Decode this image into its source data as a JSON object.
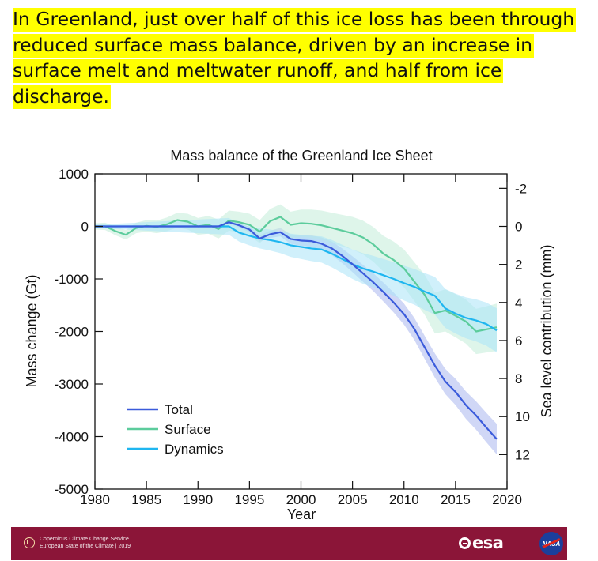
{
  "caption": {
    "text": "In Greenland, just over half of this ice loss has been through reduced surface mass balance, driven by an increase in surface melt and meltwater runoff, and half from ice discharge."
  },
  "colors": {
    "total": "#3b5bdb",
    "total_band": "#aab6ef",
    "surface": "#5ccc9c",
    "surface_band": "#c2ecd9",
    "dynamics": "#1fb6f0",
    "dynamics_band": "#a9e3f8",
    "footer_bg": "#8b1538"
  },
  "chart_data": {
    "type": "line",
    "title": "Mass balance of the Greenland Ice Sheet",
    "xlabel": "Year",
    "ylabel": "Mass change (Gt)",
    "y2label": "Sea level contribution (mm)",
    "xlim": [
      1980,
      2020
    ],
    "ylim": [
      -5000,
      1000
    ],
    "xticks": [
      1980,
      1985,
      1990,
      1995,
      2000,
      2005,
      2010,
      2015,
      2020
    ],
    "yticks": [
      1000,
      0,
      -1000,
      -2000,
      -3000,
      -4000,
      -5000
    ],
    "y2ticks": [
      -2,
      0,
      2,
      4,
      6,
      8,
      10,
      12
    ],
    "legend": [
      "Total",
      "Surface",
      "Dynamics"
    ],
    "legend_position": "bottom-left",
    "series": [
      {
        "name": "Total",
        "x": [
          1980,
          1981,
          1982,
          1983,
          1984,
          1985,
          1986,
          1987,
          1988,
          1989,
          1990,
          1991,
          1992,
          1993,
          1994,
          1995,
          1996,
          1997,
          1998,
          1999,
          2000,
          2001,
          2002,
          2003,
          2004,
          2005,
          2006,
          2007,
          2008,
          2009,
          2010,
          2011,
          2012,
          2013,
          2014,
          2015,
          2016,
          2017,
          2018,
          2019
        ],
        "values": [
          0,
          0,
          0,
          0,
          0,
          0,
          0,
          0,
          0,
          0,
          0,
          0,
          0,
          80,
          20,
          -60,
          -230,
          -150,
          -110,
          -240,
          -270,
          -280,
          -330,
          -420,
          -560,
          -720,
          -890,
          -1060,
          -1250,
          -1450,
          -1670,
          -1950,
          -2300,
          -2650,
          -2950,
          -3150,
          -3400,
          -3600,
          -3830,
          -4050
        ],
        "band_halfwidth": [
          0,
          0,
          0,
          0,
          0,
          0,
          0,
          0,
          0,
          0,
          0,
          0,
          0,
          30,
          40,
          50,
          60,
          70,
          80,
          90,
          100,
          110,
          120,
          130,
          140,
          150,
          160,
          170,
          180,
          190,
          200,
          210,
          220,
          230,
          240,
          250,
          260,
          270,
          280,
          290
        ]
      },
      {
        "name": "Surface",
        "x": [
          1980,
          1981,
          1982,
          1983,
          1984,
          1985,
          1986,
          1987,
          1988,
          1989,
          1990,
          1991,
          1992,
          1993,
          1994,
          1995,
          1996,
          1997,
          1998,
          1999,
          2000,
          2001,
          2002,
          2003,
          2004,
          2005,
          2006,
          2007,
          2008,
          2009,
          2010,
          2011,
          2012,
          2013,
          2014,
          2015,
          2016,
          2017,
          2018,
          2019
        ],
        "values": [
          0,
          0,
          -90,
          -160,
          -30,
          10,
          -10,
          40,
          120,
          90,
          0,
          30,
          -50,
          110,
          80,
          30,
          -100,
          100,
          180,
          30,
          60,
          50,
          20,
          -30,
          -80,
          -130,
          -210,
          -340,
          -520,
          -640,
          -800,
          -1050,
          -1300,
          -1650,
          -1600,
          -1700,
          -1810,
          -2000,
          -1960,
          -1920
        ],
        "band_halfwidth": [
          60,
          70,
          80,
          90,
          100,
          110,
          120,
          130,
          140,
          150,
          160,
          170,
          180,
          190,
          200,
          210,
          220,
          230,
          240,
          250,
          260,
          270,
          280,
          290,
          300,
          310,
          320,
          330,
          340,
          350,
          360,
          370,
          380,
          390,
          400,
          410,
          420,
          430,
          440,
          450
        ]
      },
      {
        "name": "Dynamics",
        "x": [
          1980,
          1981,
          1982,
          1983,
          1984,
          1985,
          1986,
          1987,
          1988,
          1989,
          1990,
          1991,
          1992,
          1993,
          1994,
          1995,
          1996,
          1997,
          1998,
          1999,
          2000,
          2001,
          2002,
          2003,
          2004,
          2005,
          2006,
          2007,
          2008,
          2009,
          2010,
          2011,
          2012,
          2013,
          2014,
          2015,
          2016,
          2017,
          2018,
          2019
        ],
        "values": [
          0,
          0,
          0,
          0,
          0,
          0,
          0,
          0,
          0,
          0,
          0,
          0,
          0,
          0,
          -120,
          -180,
          -230,
          -260,
          -300,
          -360,
          -390,
          -420,
          -440,
          -520,
          -620,
          -720,
          -800,
          -860,
          -930,
          -1000,
          -1080,
          -1150,
          -1240,
          -1320,
          -1560,
          -1660,
          -1740,
          -1790,
          -1860,
          -1980
        ],
        "band_halfwidth": [
          30,
          40,
          50,
          60,
          70,
          80,
          90,
          100,
          110,
          120,
          130,
          140,
          150,
          160,
          170,
          180,
          190,
          200,
          210,
          220,
          230,
          240,
          250,
          260,
          270,
          280,
          290,
          300,
          310,
          320,
          330,
          340,
          350,
          360,
          370,
          380,
          390,
          400,
          410,
          420
        ]
      }
    ]
  },
  "footer": {
    "c3s_line1": "Copernicus Climate Change Service",
    "c3s_line2": "European State of the Climate | 2019",
    "esa_label": "esa",
    "nasa_label": "NASA",
    "c3s_icon": "c3s-logo-icon",
    "esa_icon": "esa-logo-icon",
    "nasa_icon": "nasa-logo-icon"
  }
}
